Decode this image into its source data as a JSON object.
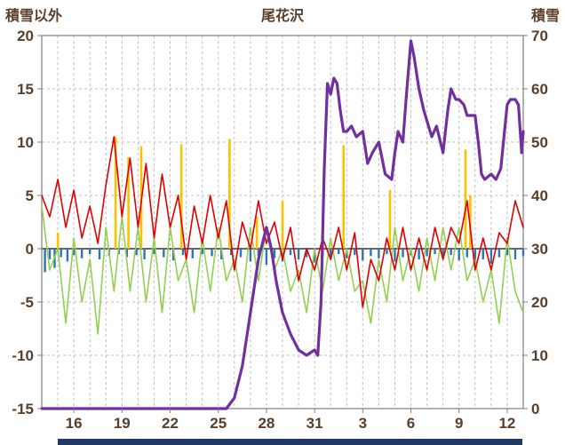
{
  "chart_data": {
    "type": "line",
    "title": "尾花沢",
    "left_axis_title": "積雪以外",
    "right_axis_title": "積雪",
    "x_range": [
      0,
      30
    ],
    "x_ticks": [
      2,
      5,
      8,
      11,
      14,
      17,
      20,
      23,
      26,
      29
    ],
    "x_tick_labels": [
      "16",
      "19",
      "22",
      "25",
      "28",
      "31",
      "3",
      "6",
      "9",
      "12"
    ],
    "left_range": [
      -15,
      20
    ],
    "left_ticks": [
      20,
      15,
      10,
      5,
      0,
      -5,
      -10,
      -15
    ],
    "right_range": [
      0,
      70
    ],
    "right_ticks": [
      70,
      60,
      50,
      40,
      30,
      20,
      10,
      0
    ],
    "grid": "dashed",
    "legend": "none",
    "text_color": "#5a3e28",
    "grid_color": "#bfbfbf",
    "border_color": "#7f7f7f",
    "zero_line_color": "#333333",
    "bottom_strip_color": "#1f3864",
    "series": [
      {
        "name": "green-line",
        "axis": "left",
        "color": "#92d050",
        "stroke_width": 1.6,
        "x_start": 0,
        "x_step": 0.5,
        "values": [
          4,
          -2,
          0,
          -7,
          1,
          -5,
          -1,
          -8,
          2,
          -4,
          3,
          -4,
          2,
          -5,
          1,
          -6,
          2,
          -3,
          -1,
          -6,
          1,
          -4,
          2,
          -3,
          -1,
          -5,
          2,
          -3,
          2,
          -2,
          0,
          -4,
          -2,
          -6,
          0,
          -4,
          1,
          -3,
          0,
          -4,
          -3,
          -7,
          -1,
          -5,
          2,
          -3,
          0,
          -4,
          1,
          -3,
          2,
          -2,
          2,
          -3,
          -1,
          -5,
          -2,
          -7,
          1,
          -4,
          -6
        ]
      },
      {
        "name": "red-line",
        "axis": "left",
        "color": "#e00000",
        "stroke_width": 1.6,
        "x_start": 0,
        "x_step": 0.5,
        "values": [
          5,
          3,
          6.5,
          2,
          5.5,
          1,
          4,
          0.5,
          6,
          10.5,
          3,
          8.5,
          2,
          8,
          1,
          7,
          2,
          5,
          -1,
          4,
          0.5,
          5,
          1,
          4.5,
          -2,
          2.5,
          0,
          4.5,
          0.5,
          2.5,
          -1,
          2,
          -3,
          0,
          -2,
          1,
          -1,
          2,
          -2,
          1.5,
          -5.5,
          -1,
          -3,
          1,
          -2,
          2,
          -2,
          1,
          -2,
          2,
          -1,
          2,
          0.5,
          4.5,
          -2,
          1,
          -2,
          1.5,
          0.5,
          4.5,
          2
        ]
      },
      {
        "name": "snow-depth-line",
        "axis": "right",
        "color": "#7030a0",
        "stroke_width": 3.2,
        "x": [
          0,
          2,
          4,
          6,
          8,
          10,
          11,
          11.5,
          12,
          12.5,
          13,
          13.5,
          14,
          14.3,
          14.6,
          15,
          15.5,
          16,
          16.5,
          17,
          17.2,
          17.4,
          17.6,
          17.8,
          18,
          18.2,
          18.4,
          18.6,
          18.8,
          19,
          19.3,
          19.6,
          20,
          20.3,
          20.6,
          21,
          21.4,
          21.8,
          22,
          22.2,
          22.5,
          22.7,
          23,
          23.2,
          23.5,
          23.8,
          24,
          24.3,
          24.6,
          25,
          25.3,
          25.5,
          25.8,
          26,
          26.3,
          26.5,
          27,
          27.2,
          27.4,
          27.6,
          28,
          28.3,
          28.6,
          29,
          29.2,
          29.5,
          29.7,
          29.9,
          30
        ],
        "values": [
          0,
          0,
          0,
          0,
          0,
          0,
          0,
          0,
          2,
          8,
          18,
          28,
          34,
          30,
          24,
          18,
          14,
          11,
          10,
          11,
          10,
          20,
          45,
          61,
          59,
          62,
          61,
          56,
          52,
          52,
          53,
          51,
          52,
          46,
          48,
          50,
          44,
          43,
          48,
          52,
          50,
          58,
          69,
          66,
          60,
          56,
          54,
          51,
          53,
          48,
          56,
          60,
          58,
          58,
          57,
          55,
          55,
          50,
          44,
          43,
          44,
          43,
          45,
          57,
          58,
          58,
          57,
          48,
          52
        ]
      }
    ],
    "bars": [
      {
        "name": "orange-bars",
        "axis": "left",
        "color": "#ffc000",
        "width": 2.6,
        "points": [
          [
            1.0,
            1.5
          ],
          [
            4.6,
            10.5
          ],
          [
            5.4,
            8.6
          ],
          [
            6.2,
            9.6
          ],
          [
            8.7,
            9.8
          ],
          [
            11.7,
            10.3
          ],
          [
            13.4,
            3.0
          ],
          [
            15.0,
            4.5
          ],
          [
            18.8,
            9.7
          ],
          [
            21.7,
            5.5
          ],
          [
            26.4,
            9.3
          ],
          [
            26.7,
            5.0
          ]
        ]
      },
      {
        "name": "blue-bars",
        "axis": "left",
        "color": "#2e75b6",
        "width": 2.4,
        "points": [
          [
            0.2,
            -2.2
          ],
          [
            0.5,
            -1.0
          ],
          [
            0.8,
            -1.8
          ],
          [
            1.2,
            -0.8
          ],
          [
            1.6,
            -1.2
          ],
          [
            2.0,
            -0.6
          ],
          [
            2.5,
            -0.9
          ],
          [
            3.0,
            -0.5
          ],
          [
            3.6,
            -1.0
          ],
          [
            4.2,
            -0.7
          ],
          [
            4.8,
            -0.5
          ],
          [
            5.3,
            -0.8
          ],
          [
            5.9,
            -0.6
          ],
          [
            6.4,
            -1.0
          ],
          [
            7.0,
            -0.5
          ],
          [
            7.6,
            -0.8
          ],
          [
            8.2,
            -1.1
          ],
          [
            8.8,
            -0.6
          ],
          [
            9.4,
            -0.9
          ],
          [
            10.0,
            -0.5
          ],
          [
            10.6,
            -0.7
          ],
          [
            11.2,
            -1.0
          ],
          [
            11.8,
            -0.6
          ],
          [
            12.4,
            -0.8
          ],
          [
            13.0,
            -1.2
          ],
          [
            13.5,
            -0.7
          ],
          [
            14.0,
            -1.5
          ],
          [
            14.5,
            -0.9
          ],
          [
            15.0,
            -1.2
          ],
          [
            15.5,
            -0.6
          ],
          [
            16.0,
            -1.0
          ],
          [
            16.5,
            -0.8
          ],
          [
            17.0,
            -1.3
          ],
          [
            17.5,
            -0.7
          ],
          [
            18.0,
            -1.0
          ],
          [
            18.5,
            -0.5
          ],
          [
            19.0,
            -0.9
          ],
          [
            19.5,
            -0.6
          ],
          [
            20.0,
            -1.1
          ],
          [
            20.5,
            -0.7
          ],
          [
            21.0,
            -0.9
          ],
          [
            21.5,
            -0.5
          ],
          [
            22.0,
            -1.2
          ],
          [
            22.5,
            -0.8
          ],
          [
            23.0,
            -0.6
          ],
          [
            23.5,
            -1.0
          ],
          [
            24.0,
            -0.7
          ],
          [
            24.5,
            -0.5
          ],
          [
            25.0,
            -0.9
          ],
          [
            25.5,
            -0.6
          ],
          [
            26.0,
            -1.1
          ],
          [
            26.5,
            -0.8
          ],
          [
            27.0,
            -1.6
          ],
          [
            27.5,
            -1.0
          ],
          [
            28.0,
            -1.4
          ],
          [
            28.5,
            -0.8
          ],
          [
            29.0,
            -0.6
          ],
          [
            29.5,
            -1.0
          ],
          [
            30.0,
            -0.7
          ]
        ]
      }
    ]
  }
}
